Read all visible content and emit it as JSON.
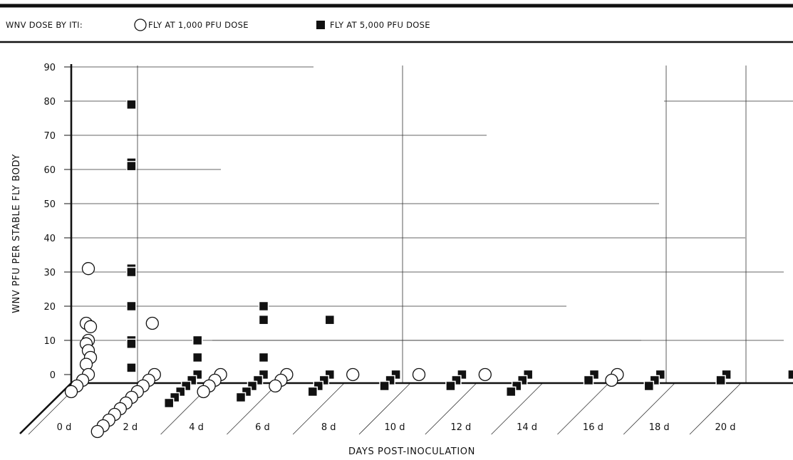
{
  "colors": {
    "ink": "#111111",
    "grid": "#222222",
    "background": "#ffffff"
  },
  "chart_data": {
    "type": "scatter",
    "title": "",
    "legend": {
      "heading": "WNV  DOSE BY ITI:",
      "placement": "top",
      "entries": [
        {
          "label": "FLY AT 1,000 PFU DOSE",
          "marker": "open-circle"
        },
        {
          "label": "FLY AT 5,000 PFU DOSE",
          "marker": "filled-square"
        }
      ]
    },
    "xlabel": "DAYS POST-INOCULATION",
    "ylabel": "WNV PFU PER STABLE FLY BODY",
    "xlim": [
      0,
      21
    ],
    "ylim": [
      0,
      90
    ],
    "x_ticks": [
      "0 d",
      "2 d",
      "4 d",
      "6 d",
      "8 d",
      "10 d",
      "12 d",
      "14 d",
      "16 d",
      "18 d",
      "20 d"
    ],
    "y_ticks": [
      "0",
      "10",
      "20",
      "30",
      "40",
      "50",
      "60",
      "70",
      "80",
      "90"
    ],
    "series": [
      {
        "name": "FLY AT 1,000 PFU DOSE",
        "marker": "open-circle",
        "points": [
          {
            "x": 0,
            "y": 31
          },
          {
            "x": 0,
            "y": 15
          },
          {
            "x": 0,
            "y": 14
          },
          {
            "x": 0,
            "y": 10
          },
          {
            "x": 0,
            "y": 9
          },
          {
            "x": 0,
            "y": 7
          },
          {
            "x": 0,
            "y": 5
          },
          {
            "x": 0,
            "y": 3
          },
          {
            "x": 0,
            "y": 0
          },
          {
            "x": 0,
            "y": 0
          },
          {
            "x": 0,
            "y": 0
          },
          {
            "x": 0,
            "y": 0
          },
          {
            "x": 2,
            "y": 15
          },
          {
            "x": 2,
            "y": 0
          },
          {
            "x": 2,
            "y": 0
          },
          {
            "x": 2,
            "y": 0
          },
          {
            "x": 2,
            "y": 0
          },
          {
            "x": 2,
            "y": 0
          },
          {
            "x": 2,
            "y": 0
          },
          {
            "x": 2,
            "y": 0
          },
          {
            "x": 2,
            "y": 0
          },
          {
            "x": 2,
            "y": 0
          },
          {
            "x": 2,
            "y": 0
          },
          {
            "x": 2,
            "y": 0
          },
          {
            "x": 4,
            "y": 0
          },
          {
            "x": 4,
            "y": 0
          },
          {
            "x": 4,
            "y": 0
          },
          {
            "x": 4,
            "y": 0
          },
          {
            "x": 6,
            "y": 0
          },
          {
            "x": 6,
            "y": 0
          },
          {
            "x": 6,
            "y": 0
          },
          {
            "x": 8,
            "y": 0
          },
          {
            "x": 10,
            "y": 0
          },
          {
            "x": 12,
            "y": 0
          },
          {
            "x": 16,
            "y": 0
          },
          {
            "x": 16,
            "y": 0
          }
        ]
      },
      {
        "name": "FLY AT 5,000 PFU DOSE",
        "marker": "filled-square",
        "points": [
          {
            "x": 1,
            "y": 79
          },
          {
            "x": 1,
            "y": 62
          },
          {
            "x": 1,
            "y": 61
          },
          {
            "x": 1,
            "y": 31
          },
          {
            "x": 1,
            "y": 30
          },
          {
            "x": 1,
            "y": 30
          },
          {
            "x": 1,
            "y": 20
          },
          {
            "x": 1,
            "y": 10
          },
          {
            "x": 1,
            "y": 9
          },
          {
            "x": 1,
            "y": 2
          },
          {
            "x": 3,
            "y": 10
          },
          {
            "x": 3,
            "y": 5
          },
          {
            "x": 3,
            "y": 0
          },
          {
            "x": 3,
            "y": 0
          },
          {
            "x": 3,
            "y": 0
          },
          {
            "x": 3,
            "y": 0
          },
          {
            "x": 3,
            "y": 0
          },
          {
            "x": 3,
            "y": 0
          },
          {
            "x": 5,
            "y": 20
          },
          {
            "x": 5,
            "y": 16
          },
          {
            "x": 5,
            "y": 5
          },
          {
            "x": 5,
            "y": 0
          },
          {
            "x": 5,
            "y": 0
          },
          {
            "x": 5,
            "y": 0
          },
          {
            "x": 5,
            "y": 0
          },
          {
            "x": 5,
            "y": 0
          },
          {
            "x": 7,
            "y": 16
          },
          {
            "x": 7,
            "y": 0
          },
          {
            "x": 7,
            "y": 0
          },
          {
            "x": 7,
            "y": 0
          },
          {
            "x": 7,
            "y": 0
          },
          {
            "x": 9,
            "y": 0
          },
          {
            "x": 9,
            "y": 0
          },
          {
            "x": 9,
            "y": 0
          },
          {
            "x": 11,
            "y": 0
          },
          {
            "x": 11,
            "y": 0
          },
          {
            "x": 11,
            "y": 0
          },
          {
            "x": 13,
            "y": 0
          },
          {
            "x": 13,
            "y": 0
          },
          {
            "x": 13,
            "y": 0
          },
          {
            "x": 13,
            "y": 0
          },
          {
            "x": 15,
            "y": 0
          },
          {
            "x": 15,
            "y": 0
          },
          {
            "x": 17,
            "y": 0
          },
          {
            "x": 17,
            "y": 0
          },
          {
            "x": 17,
            "y": 0
          },
          {
            "x": 19,
            "y": 0
          },
          {
            "x": 19,
            "y": 0
          },
          {
            "x": 21,
            "y": 0
          }
        ]
      }
    ]
  }
}
